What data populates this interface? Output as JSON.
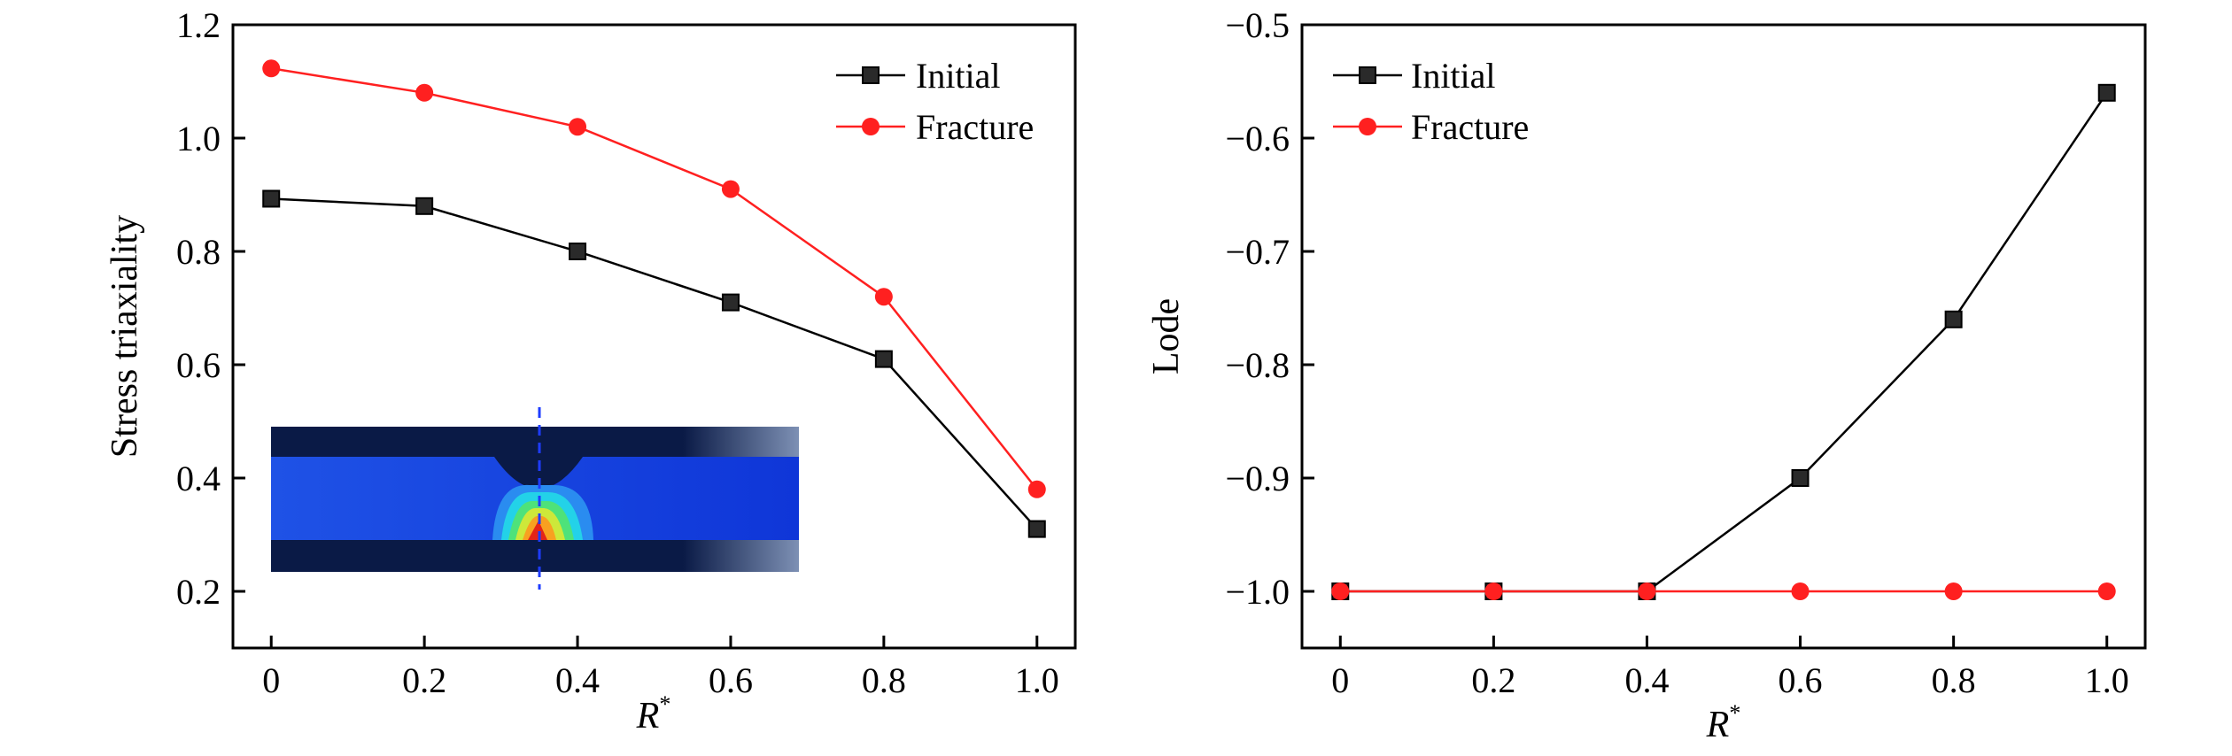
{
  "chart_data": [
    {
      "type": "line",
      "x": [
        0,
        0.2,
        0.4,
        0.6,
        0.8,
        1.0
      ],
      "x_ticks": [
        "0",
        "0.2",
        "0.4",
        "0.6",
        "0.8",
        "1.0"
      ],
      "y_ticks": [
        "0.2",
        "0.4",
        "0.6",
        "0.8",
        "1.0",
        "1.2"
      ],
      "y_tick_values": [
        0.2,
        0.4,
        0.6,
        0.8,
        1.0,
        1.2
      ],
      "xlabel": "R",
      "xlabel_sup": "*",
      "ylabel": "Stress triaxiality",
      "xlim": [
        -0.05,
        1.05
      ],
      "ylim": [
        0.1,
        1.2
      ],
      "legend": "top-right",
      "series": [
        {
          "name": "Initial",
          "values": [
            0.893,
            0.88,
            0.8,
            0.71,
            0.61,
            0.31
          ],
          "color": "#000000",
          "marker": "square"
        },
        {
          "name": "Fracture",
          "values": [
            1.123,
            1.08,
            1.02,
            0.91,
            0.72,
            0.38
          ],
          "color": "#ff2020",
          "marker": "circle"
        }
      ],
      "inset": "weld joint stress contour image"
    },
    {
      "type": "line",
      "x": [
        0,
        0.2,
        0.4,
        0.6,
        0.8,
        1.0
      ],
      "x_ticks": [
        "0",
        "0.2",
        "0.4",
        "0.6",
        "0.8",
        "1.0"
      ],
      "y_ticks": [
        "−1.0",
        "−0.9",
        "−0.8",
        "−0.7",
        "−0.6",
        "−0.5"
      ],
      "y_tick_values": [
        -1.0,
        -0.9,
        -0.8,
        -0.7,
        -0.6,
        -0.5
      ],
      "xlabel": "R",
      "xlabel_sup": "*",
      "ylabel": "Lode",
      "xlim": [
        -0.05,
        1.05
      ],
      "ylim": [
        -1.05,
        -0.5
      ],
      "legend": "top-left",
      "series": [
        {
          "name": "Initial",
          "values": [
            -1.0,
            -1.0,
            -1.0,
            -0.9,
            -0.76,
            -0.56
          ],
          "color": "#000000",
          "marker": "square"
        },
        {
          "name": "Fracture",
          "values": [
            -1.0,
            -1.0,
            -1.0,
            -1.0,
            -1.0,
            -1.0
          ],
          "color": "#ff2020",
          "marker": "circle"
        }
      ]
    }
  ]
}
